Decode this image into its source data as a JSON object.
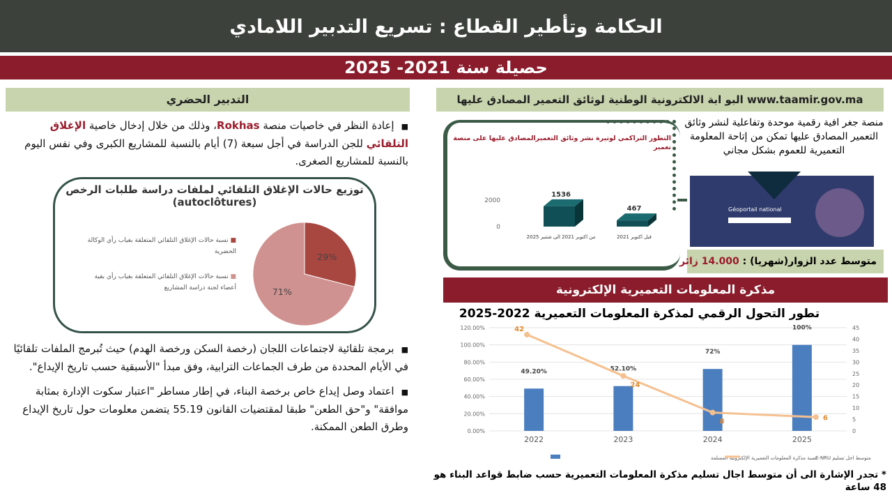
{
  "header": {
    "title": "الحكامة وتأطير القطاع : تسريع التدبير اللامادي",
    "subtitle": "حصيلة سنة 2021- 2025"
  },
  "left": {
    "section_title": "التدبير الحضري",
    "bullet1": {
      "a": "إعادة النظر في خاصيات منصة ",
      "b": "Rokhas",
      "c": "، وذلك من خلال إدخال خاصية ",
      "d": "الإغلاق التلقائي",
      "e": " للجن الدراسة في أجل سبعة (7) أيام بالنسبة للمشاريع الكبرى وفي نفس اليوم بالنسبة للمشاريع الصغرى."
    },
    "bullet2": "برمجة تلقائية لاجتماعات اللجان (رخصة السكن ورخصة الهدم) حيث تُبرمج الملفات تلقائيًا في الأيام المحددة من طرف الجماعات الترابية، وفق مبدأ \"الأسبقية حسب تاريخ الإيداع\".",
    "bullet3": "اعتماد وصل إيداع خاص برخصة البناء، في إطار مساطر \"اعتبار سكوت الإدارة بمثابة موافقة\" و\"حق الطعن\" طبقا لمقتضيات القانون 55.19 يتضمن معلومات حول تاريخ الإيداع وطرق الطعن الممكنة."
  },
  "right": {
    "section_title": "البو ابة الالكترونية الوطنية لوثائق التعمير المصادق عليها www.taamir.gov.ma",
    "description": "منصة جغر افية رقمية موحدة وتفاعلية لنشر وثائق التعمير المصادق عليها تمكن من إتاحة المعلومة التعميرية للعموم بشكل مجاني",
    "portal_label": "Géoportail national",
    "visitors_label": "متوسط عدد الزوار(شهريا) : ",
    "visitors_value": "14.000 زائر",
    "section2_title": "مذكرة المعلومات التعميرية الإلكترونية",
    "footnote": "* تجدر الإشارة الى أن متوسط اجال تسليم مذكرة المعلومات التعميرية حسب ضابط قواعد البناء هو 48 ساعة"
  },
  "colors": {
    "dark": "#3d413b",
    "red": "#8a1c2c",
    "green": "#c7d4ad",
    "teal": "#0f4f55",
    "blue": "#4a7ebf",
    "orange": "#f5c08f"
  },
  "chart_data": [
    {
      "type": "pie",
      "title": "توزيع حالات الإغلاق التلقائي لملفات دراسة طلبات الرخص",
      "subtitle": "(autoclôtures)",
      "slices": [
        {
          "label": "نسبة حالات الإغلاق التلقائي المتعلقة بغياب رأي الوكالة الحضرية",
          "value": 29,
          "text": "29%",
          "color": "#a84640"
        },
        {
          "label": "نسبة حالات الإغلاق التلقائي المتعلقة بغياب رأي بقية أعضاء لجنة دراسة المشاريع",
          "value": 71,
          "text": "71%",
          "color": "#d09290"
        }
      ],
      "legend": "left"
    },
    {
      "type": "bar",
      "title": "التطور التراكمي لوتيرة نشر وثائق التعميرالمصادق عليها على منصة تعمير",
      "categories": [
        "من اكتوبر 2021 الى شتنبر 2025",
        "قبل اكتوبر 2021"
      ],
      "values": [
        1536,
        467
      ],
      "yticks": [
        "0",
        "2000"
      ]
    },
    {
      "type": "bar",
      "title": "تطور التحول الرقمي لمذكرة المعلومات التعميرية 2022-2025",
      "categories": [
        "2022",
        "2023",
        "2024",
        "2025"
      ],
      "series": [
        {
          "name": "نسبة مذكرة المعلومات التعميرية الإلكترونية المسلمة",
          "type": "bar",
          "axis": "left",
          "values": [
            49.2,
            52.1,
            72,
            100
          ],
          "labels": [
            "49.20%",
            "52.10%",
            "72%",
            "100%"
          ]
        },
        {
          "name": "متوسط اجل تسليم E-NRU",
          "type": "line",
          "axis": "right",
          "values": [
            42,
            24,
            8,
            6
          ],
          "labels": [
            "42",
            "24",
            "8",
            "6"
          ]
        }
      ],
      "ylim_left": [
        0,
        120
      ],
      "yticks_left": [
        "0.00%",
        "20.00%",
        "40.00%",
        "60.00%",
        "80.00%",
        "100.00%",
        "120.00%"
      ],
      "ylim_right": [
        0,
        45
      ],
      "yticks_right": [
        "0",
        "5",
        "10",
        "15",
        "20",
        "25",
        "30",
        "35",
        "40",
        "45"
      ],
      "grid": true,
      "legend": "bottom"
    }
  ]
}
